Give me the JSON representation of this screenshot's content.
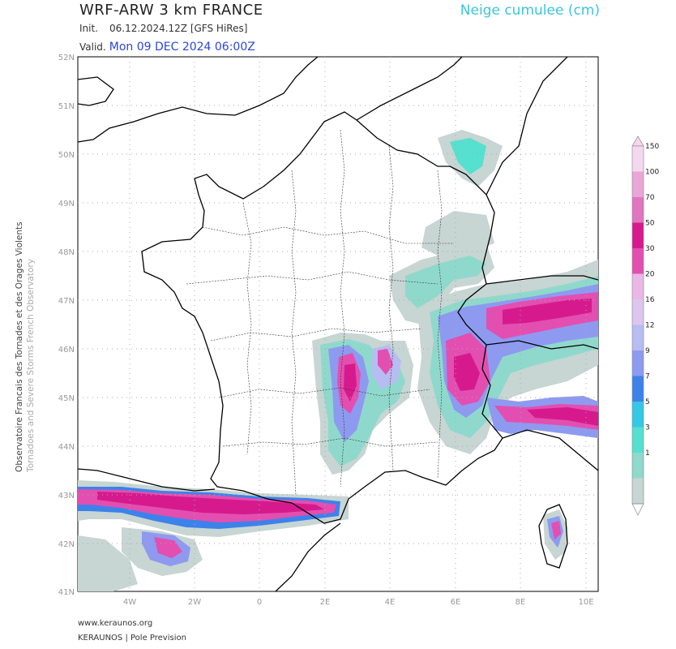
{
  "header": {
    "title": "WRF-ARW 3 km FRANCE",
    "parameter": "Neige cumulee (cm)",
    "init_label": "Init.",
    "init_value": "06.12.2024.12Z [GFS HiRes]",
    "valid_label": "Valid.",
    "valid_value": "Mon 09 DEC 2024 06:00Z"
  },
  "side_credit": {
    "line1": "Observatoire Francais des Tornades et des Orages Violents",
    "line2": "Tornadoes and Severe Storms French Observatory"
  },
  "axes": {
    "lat_labels": [
      "52N",
      "51N",
      "50N",
      "49N",
      "48N",
      "47N",
      "46N",
      "45N",
      "44N",
      "43N",
      "42N",
      "41N"
    ],
    "lon_labels": [
      "4W",
      "2W",
      "0",
      "2E",
      "4E",
      "6E",
      "8E",
      "10E"
    ]
  },
  "colorbar": {
    "levels": [
      "150",
      "100",
      "70",
      "50",
      "30",
      "20",
      "16",
      "12",
      "9",
      "7",
      "5",
      "3",
      "1"
    ],
    "colors": [
      "#f4d8ee",
      "#e9a6d6",
      "#e275c0",
      "#d61a8e",
      "#e24fb0",
      "#eab7e6",
      "#dcc6f0",
      "#b7bcf2",
      "#8e9af0",
      "#3d82ea",
      "#35c7e6",
      "#55e0d0",
      "#8fd9cc",
      "#c7d5d3"
    ]
  },
  "footer": {
    "website": "www.keraunos.org",
    "credit": "KERAUNOS | Pole Prevision"
  }
}
